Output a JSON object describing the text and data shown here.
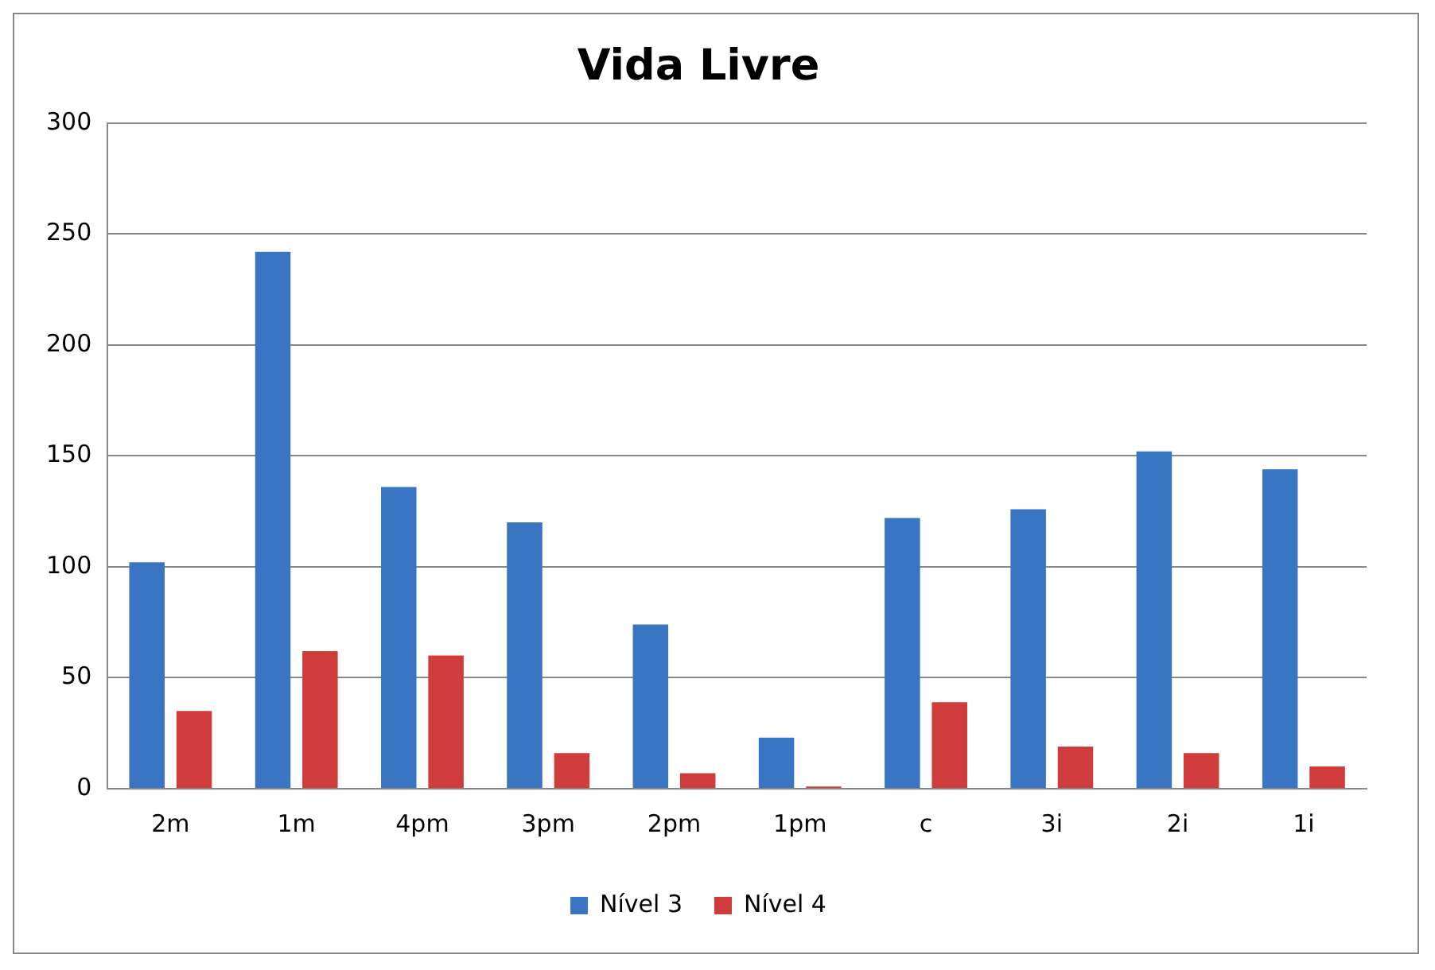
{
  "chart_data": {
    "type": "bar",
    "title": "Vida Livre",
    "categories": [
      "2m",
      "1m",
      "4pm",
      "3pm",
      "2pm",
      "1pm",
      "c",
      "3i",
      "2i",
      "1i"
    ],
    "series": [
      {
        "name": "Nível 3",
        "color": "#3a75c4",
        "values": [
          102,
          242,
          136,
          120,
          74,
          23,
          122,
          126,
          152,
          144
        ]
      },
      {
        "name": "Nível 4",
        "color": "#d03b3b",
        "values": [
          35,
          62,
          60,
          16,
          7,
          1,
          39,
          19,
          16,
          10
        ]
      }
    ],
    "ylim": [
      0,
      300
    ],
    "yticks": [
      0,
      50,
      100,
      150,
      200,
      250,
      300
    ],
    "grid": "y",
    "legend": "bottom"
  }
}
